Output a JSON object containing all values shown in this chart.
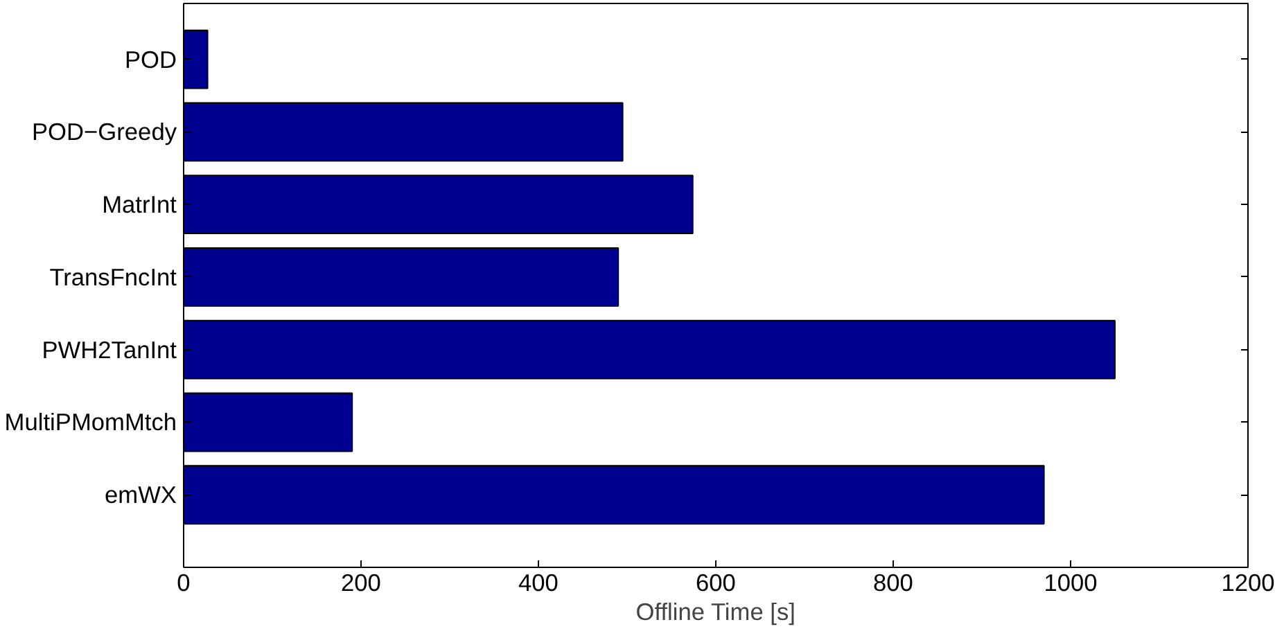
{
  "chart_data": {
    "type": "bar",
    "orientation": "horizontal",
    "xlabel": "Offline Time [s]",
    "categories": [
      "POD",
      "POD−Greedy",
      "MatrInt",
      "TransFncInt",
      "PWH2TanInt",
      "MultiPMomMtch",
      "emWX"
    ],
    "values": [
      27,
      495,
      574,
      490,
      1050,
      190,
      970
    ],
    "color": "#000090",
    "xlim": [
      0,
      1200
    ],
    "xticks": [
      0,
      200,
      400,
      600,
      800,
      1000,
      1200
    ],
    "grid": false
  }
}
